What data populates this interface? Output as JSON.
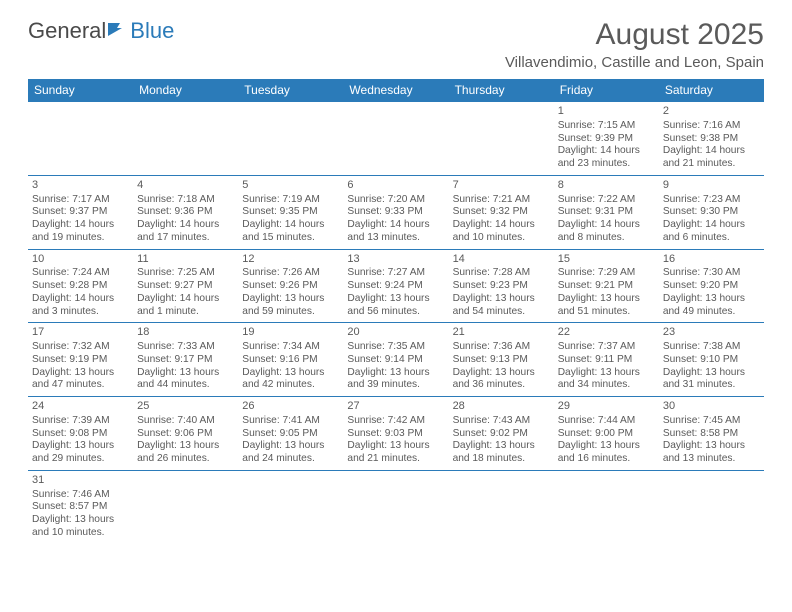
{
  "branding": {
    "part1": "General",
    "part2": "Blue",
    "icon_color": "#2b7bb9"
  },
  "header": {
    "title": "August 2025",
    "location": "Villavendimio, Castille and Leon, Spain"
  },
  "colors": {
    "header_bg": "#2b7bb9",
    "header_text": "#ffffff",
    "border": "#2b7bb9",
    "text": "#5a5a5a"
  },
  "weekdays": [
    "Sunday",
    "Monday",
    "Tuesday",
    "Wednesday",
    "Thursday",
    "Friday",
    "Saturday"
  ],
  "weeks": [
    [
      null,
      null,
      null,
      null,
      null,
      {
        "day": "1",
        "sunrise": "Sunrise: 7:15 AM",
        "sunset": "Sunset: 9:39 PM",
        "daylight": "Daylight: 14 hours and 23 minutes."
      },
      {
        "day": "2",
        "sunrise": "Sunrise: 7:16 AM",
        "sunset": "Sunset: 9:38 PM",
        "daylight": "Daylight: 14 hours and 21 minutes."
      }
    ],
    [
      {
        "day": "3",
        "sunrise": "Sunrise: 7:17 AM",
        "sunset": "Sunset: 9:37 PM",
        "daylight": "Daylight: 14 hours and 19 minutes."
      },
      {
        "day": "4",
        "sunrise": "Sunrise: 7:18 AM",
        "sunset": "Sunset: 9:36 PM",
        "daylight": "Daylight: 14 hours and 17 minutes."
      },
      {
        "day": "5",
        "sunrise": "Sunrise: 7:19 AM",
        "sunset": "Sunset: 9:35 PM",
        "daylight": "Daylight: 14 hours and 15 minutes."
      },
      {
        "day": "6",
        "sunrise": "Sunrise: 7:20 AM",
        "sunset": "Sunset: 9:33 PM",
        "daylight": "Daylight: 14 hours and 13 minutes."
      },
      {
        "day": "7",
        "sunrise": "Sunrise: 7:21 AM",
        "sunset": "Sunset: 9:32 PM",
        "daylight": "Daylight: 14 hours and 10 minutes."
      },
      {
        "day": "8",
        "sunrise": "Sunrise: 7:22 AM",
        "sunset": "Sunset: 9:31 PM",
        "daylight": "Daylight: 14 hours and 8 minutes."
      },
      {
        "day": "9",
        "sunrise": "Sunrise: 7:23 AM",
        "sunset": "Sunset: 9:30 PM",
        "daylight": "Daylight: 14 hours and 6 minutes."
      }
    ],
    [
      {
        "day": "10",
        "sunrise": "Sunrise: 7:24 AM",
        "sunset": "Sunset: 9:28 PM",
        "daylight": "Daylight: 14 hours and 3 minutes."
      },
      {
        "day": "11",
        "sunrise": "Sunrise: 7:25 AM",
        "sunset": "Sunset: 9:27 PM",
        "daylight": "Daylight: 14 hours and 1 minute."
      },
      {
        "day": "12",
        "sunrise": "Sunrise: 7:26 AM",
        "sunset": "Sunset: 9:26 PM",
        "daylight": "Daylight: 13 hours and 59 minutes."
      },
      {
        "day": "13",
        "sunrise": "Sunrise: 7:27 AM",
        "sunset": "Sunset: 9:24 PM",
        "daylight": "Daylight: 13 hours and 56 minutes."
      },
      {
        "day": "14",
        "sunrise": "Sunrise: 7:28 AM",
        "sunset": "Sunset: 9:23 PM",
        "daylight": "Daylight: 13 hours and 54 minutes."
      },
      {
        "day": "15",
        "sunrise": "Sunrise: 7:29 AM",
        "sunset": "Sunset: 9:21 PM",
        "daylight": "Daylight: 13 hours and 51 minutes."
      },
      {
        "day": "16",
        "sunrise": "Sunrise: 7:30 AM",
        "sunset": "Sunset: 9:20 PM",
        "daylight": "Daylight: 13 hours and 49 minutes."
      }
    ],
    [
      {
        "day": "17",
        "sunrise": "Sunrise: 7:32 AM",
        "sunset": "Sunset: 9:19 PM",
        "daylight": "Daylight: 13 hours and 47 minutes."
      },
      {
        "day": "18",
        "sunrise": "Sunrise: 7:33 AM",
        "sunset": "Sunset: 9:17 PM",
        "daylight": "Daylight: 13 hours and 44 minutes."
      },
      {
        "day": "19",
        "sunrise": "Sunrise: 7:34 AM",
        "sunset": "Sunset: 9:16 PM",
        "daylight": "Daylight: 13 hours and 42 minutes."
      },
      {
        "day": "20",
        "sunrise": "Sunrise: 7:35 AM",
        "sunset": "Sunset: 9:14 PM",
        "daylight": "Daylight: 13 hours and 39 minutes."
      },
      {
        "day": "21",
        "sunrise": "Sunrise: 7:36 AM",
        "sunset": "Sunset: 9:13 PM",
        "daylight": "Daylight: 13 hours and 36 minutes."
      },
      {
        "day": "22",
        "sunrise": "Sunrise: 7:37 AM",
        "sunset": "Sunset: 9:11 PM",
        "daylight": "Daylight: 13 hours and 34 minutes."
      },
      {
        "day": "23",
        "sunrise": "Sunrise: 7:38 AM",
        "sunset": "Sunset: 9:10 PM",
        "daylight": "Daylight: 13 hours and 31 minutes."
      }
    ],
    [
      {
        "day": "24",
        "sunrise": "Sunrise: 7:39 AM",
        "sunset": "Sunset: 9:08 PM",
        "daylight": "Daylight: 13 hours and 29 minutes."
      },
      {
        "day": "25",
        "sunrise": "Sunrise: 7:40 AM",
        "sunset": "Sunset: 9:06 PM",
        "daylight": "Daylight: 13 hours and 26 minutes."
      },
      {
        "day": "26",
        "sunrise": "Sunrise: 7:41 AM",
        "sunset": "Sunset: 9:05 PM",
        "daylight": "Daylight: 13 hours and 24 minutes."
      },
      {
        "day": "27",
        "sunrise": "Sunrise: 7:42 AM",
        "sunset": "Sunset: 9:03 PM",
        "daylight": "Daylight: 13 hours and 21 minutes."
      },
      {
        "day": "28",
        "sunrise": "Sunrise: 7:43 AM",
        "sunset": "Sunset: 9:02 PM",
        "daylight": "Daylight: 13 hours and 18 minutes."
      },
      {
        "day": "29",
        "sunrise": "Sunrise: 7:44 AM",
        "sunset": "Sunset: 9:00 PM",
        "daylight": "Daylight: 13 hours and 16 minutes."
      },
      {
        "day": "30",
        "sunrise": "Sunrise: 7:45 AM",
        "sunset": "Sunset: 8:58 PM",
        "daylight": "Daylight: 13 hours and 13 minutes."
      }
    ],
    [
      {
        "day": "31",
        "sunrise": "Sunrise: 7:46 AM",
        "sunset": "Sunset: 8:57 PM",
        "daylight": "Daylight: 13 hours and 10 minutes."
      },
      null,
      null,
      null,
      null,
      null,
      null
    ]
  ]
}
